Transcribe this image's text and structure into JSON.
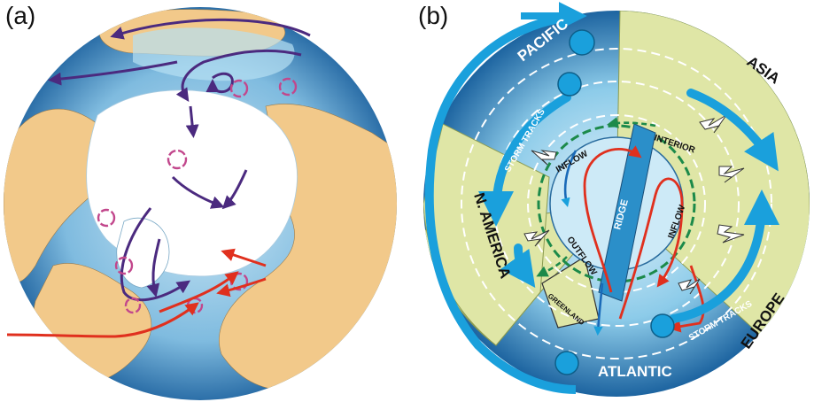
{
  "panels": {
    "a": {
      "label": "(a)"
    },
    "b": {
      "label": "(b)",
      "regions": {
        "pacific": "PACIFIC",
        "asia": "ASIA",
        "n_america": "N. AMERICA",
        "europe": "EUROPE",
        "atlantic": "ATLANTIC",
        "greenland": "GREENLAND"
      },
      "flow_labels": {
        "storm_tracks_left": "STORM TRACKS",
        "storm_tracks_right": "STORM TRACKS",
        "inflow_top": "INFLOW",
        "inflow_right": "INFLOW",
        "interior": "INTERIOR",
        "ridge": "RIDGE",
        "outflow": "OUTFLOW"
      }
    }
  },
  "colors": {
    "ocean_dark": "#1f6aa6",
    "ocean_light": "#9fd1ea",
    "land": "#f2c98a",
    "ice": "#ffffff",
    "land_b": "#dfe6a6",
    "arrow_blue": "#1aa0dc",
    "arrow_purple": "#4b2a7f",
    "arrow_red": "#e0301e",
    "arrow_green": "#1c8a4a"
  }
}
